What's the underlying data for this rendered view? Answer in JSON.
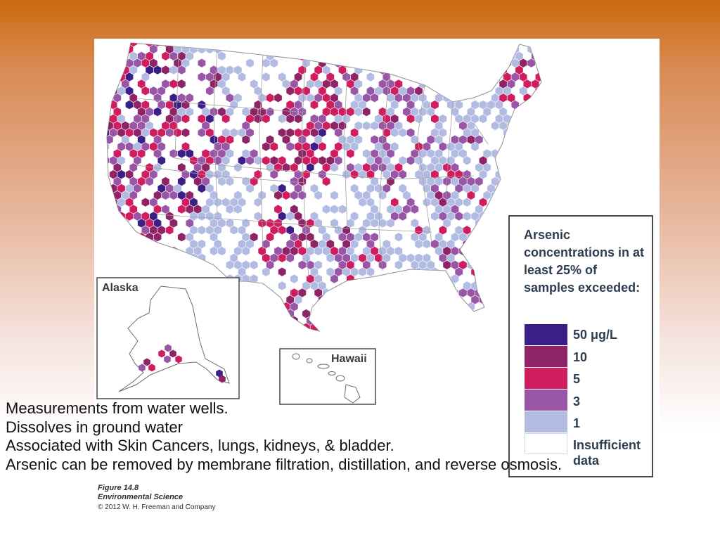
{
  "colors": {
    "level_50": "#3b1f86",
    "level_10": "#8e2365",
    "level_5": "#cf1d60",
    "level_3": "#9a56a6",
    "level_1": "#b2bbe2",
    "insufficient": "#ffffff",
    "state_lines": "#8f8f8f",
    "water": "#ffffff"
  },
  "map": {
    "alaska_label": "Alaska",
    "hawaii_label": "Hawaii"
  },
  "legend": {
    "title": "Arsenic concentrations in at least 25% of samples exceeded:",
    "items": [
      {
        "label": "50 μg/L",
        "color_key": "level_50"
      },
      {
        "label": "10",
        "color_key": "level_10"
      },
      {
        "label": "5",
        "color_key": "level_5"
      },
      {
        "label": "3",
        "color_key": "level_3"
      },
      {
        "label": "1",
        "color_key": "level_1"
      },
      {
        "label": "Insufficient data",
        "color_key": "insufficient"
      }
    ]
  },
  "credit": {
    "figure": "Figure 14.8",
    "book": "Environmental Science",
    "copyright": "© 2012 W. H. Freeman and Company"
  },
  "notes": [
    "Measurements from water wells.",
    "Dissolves in ground water",
    "Associated with Skin Cancers, lungs, kidneys, & bladder.",
    "Arsenic can be removed by membrane filtration, distillation, and reverse osmosis."
  ]
}
